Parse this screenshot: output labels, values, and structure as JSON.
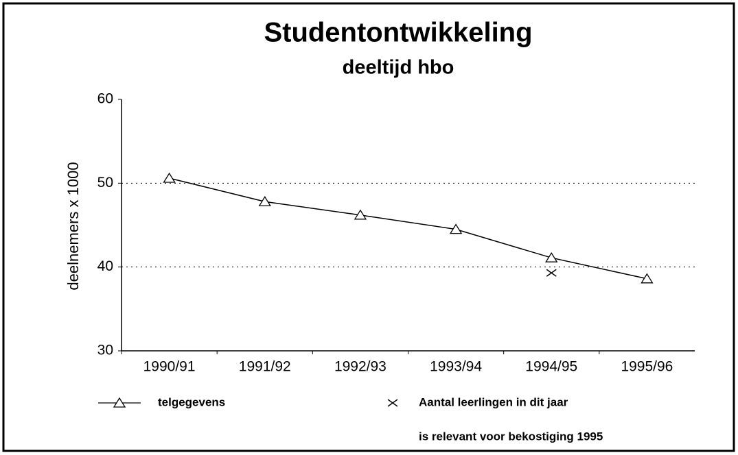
{
  "chart_data": {
    "type": "line",
    "title": "Studentontwikkeling",
    "subtitle": "deeltijd hbo",
    "y_label": "deelnemers x 1000",
    "categories": [
      "1990/91",
      "1991/92",
      "1992/93",
      "1993/94",
      "1994/95",
      "1995/96"
    ],
    "series": [
      {
        "name": "telgegevens",
        "color": "#000000",
        "marker": "triangle",
        "line": true,
        "values": [
          50.6,
          47.8,
          46.2,
          44.5,
          41.1,
          38.6
        ]
      },
      {
        "name": "Aantal leerlingen in dit jaar",
        "color": "#000000",
        "marker": "cross",
        "line": false,
        "values": [
          null,
          null,
          null,
          null,
          39.3,
          null
        ]
      }
    ],
    "annotation": "is relevant voor bekostiging 1995",
    "ylim": [
      30,
      60
    ],
    "yticks": [
      30,
      40,
      50,
      60
    ],
    "grid": true
  }
}
